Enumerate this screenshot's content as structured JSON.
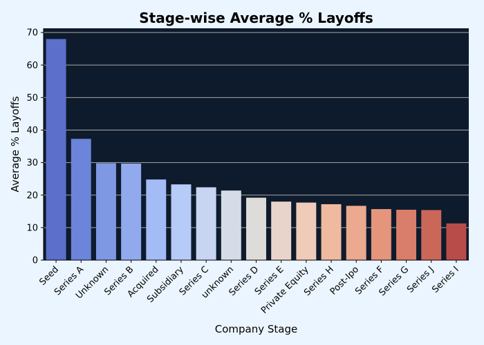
{
  "chart_data": {
    "type": "bar",
    "title": "Stage-wise Average % Layoffs",
    "xlabel": "Company Stage",
    "ylabel": "Average % Layoffs",
    "categories": [
      "Seed",
      "Series A",
      "Unknown",
      "Series B",
      "Acquired",
      "Subsidiary",
      "Series C",
      "unknown",
      "Series D",
      "Series E",
      "Private Equity",
      "Series H",
      "Post-Ipo",
      "Series F",
      "Series G",
      "Series J",
      "Series I"
    ],
    "values": [
      68.0,
      37.3,
      29.8,
      29.7,
      24.8,
      23.3,
      22.4,
      21.4,
      19.2,
      18.0,
      17.7,
      17.2,
      16.7,
      15.7,
      15.5,
      15.4,
      11.3
    ],
    "colors": [
      "#5b6fcb",
      "#6c84d9",
      "#7f98e4",
      "#91aaee",
      "#a3bcf6",
      "#b6cbf8",
      "#c7d5f3",
      "#d6dbe8",
      "#dedcdb",
      "#e9d4cb",
      "#efcbb9",
      "#f0baa0",
      "#eba990",
      "#e4957b",
      "#d97e6a",
      "#cb6759",
      "#b84c48"
    ],
    "ylim": [
      0,
      71.3
    ],
    "yticks": [
      0,
      10,
      20,
      30,
      40,
      50,
      60,
      70
    ],
    "grid": true,
    "plot_background": "#0e1b2c",
    "page_background": "#ebf5ff",
    "grid_color": "#a9a9a9"
  }
}
